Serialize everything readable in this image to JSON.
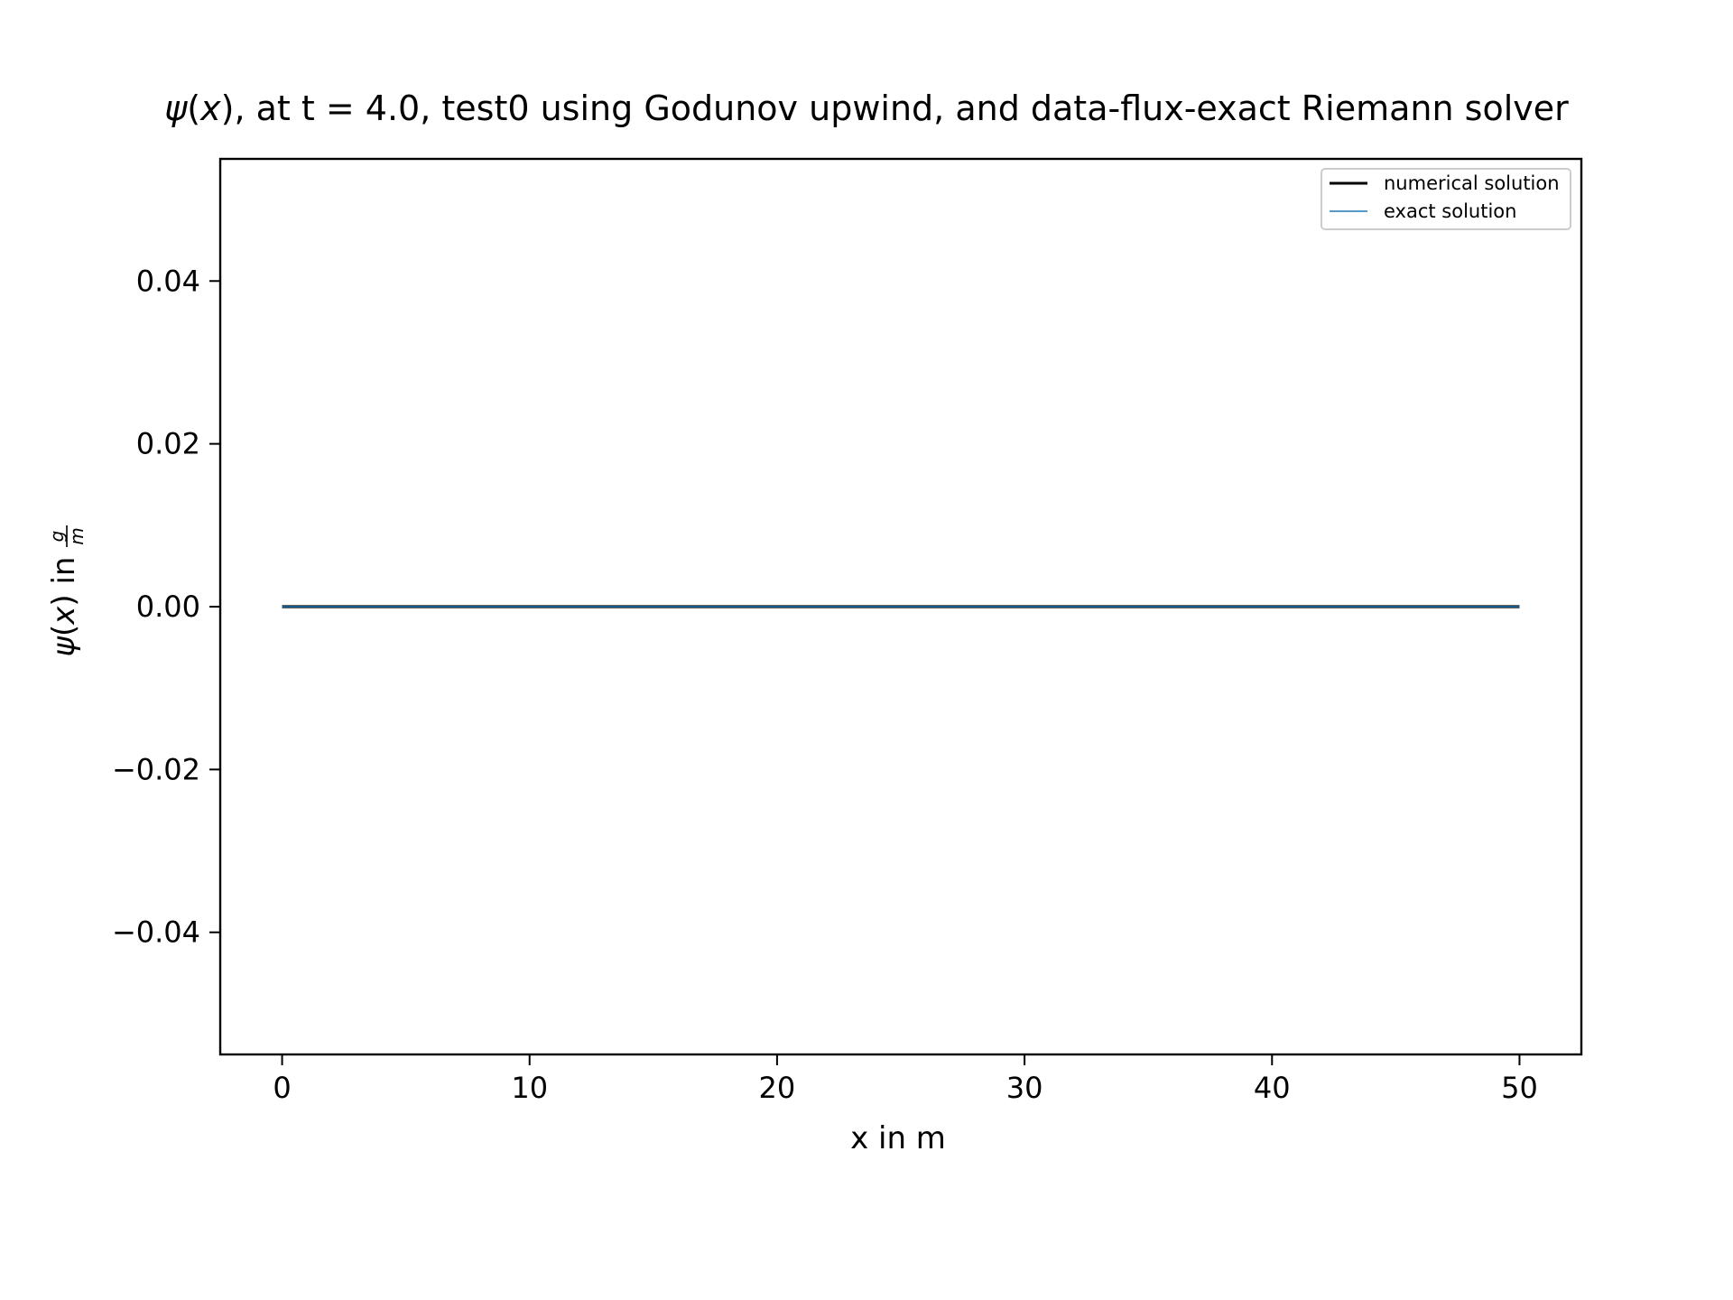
{
  "chart_data": {
    "type": "line",
    "title": {
      "psi": "ψ",
      "open": "(",
      "var": "x",
      "rest": "), at t = 4.0, test0 using Godunov upwind, and data-flux-exact Riemann solver"
    },
    "xlabel": "x in m",
    "ylabel": {
      "psi": "ψ",
      "open": "(",
      "var": "x",
      "rest": ") in ",
      "num": "g",
      "den": "m"
    },
    "xlim": [
      -2.5,
      52.5
    ],
    "ylim": [
      -0.055,
      0.055
    ],
    "x_ticks": [
      0,
      10,
      20,
      30,
      40,
      50
    ],
    "x_tick_labels": [
      "0",
      "10",
      "20",
      "30",
      "40",
      "50"
    ],
    "y_ticks": [
      0.04,
      0.02,
      0.0,
      -0.02,
      -0.04
    ],
    "y_tick_labels": [
      "0.04",
      "0.02",
      "0.00",
      "−0.02",
      "−0.04"
    ],
    "grid": false,
    "legend_position": "top-right",
    "series": [
      {
        "name": "numerical solution",
        "color": "#000000",
        "x": [
          0,
          50
        ],
        "y": [
          0,
          0
        ]
      },
      {
        "name": "exact solution",
        "color": "#1f77b4",
        "x": [
          0,
          50
        ],
        "y": [
          0,
          0
        ]
      }
    ]
  }
}
